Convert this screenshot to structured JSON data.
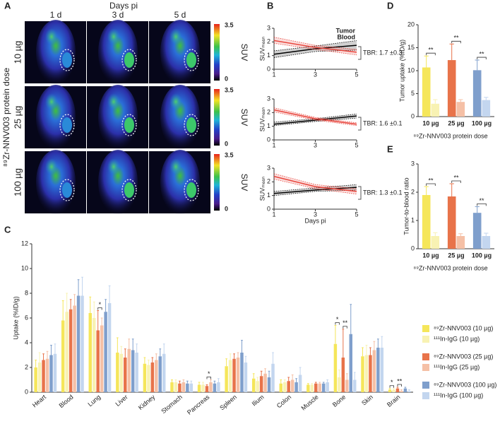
{
  "panel_a": {
    "label": "A",
    "header": "Days pi",
    "columns": [
      "1 d",
      "3 d",
      "5 d"
    ],
    "rows": [
      "10 µg",
      "25 µg",
      "100 µg"
    ],
    "dose_label": "⁸⁹Zr-NNV003 protein dose",
    "colorbar": {
      "max": 3.5,
      "min": 0,
      "label": "SUV"
    }
  },
  "chart_data": [
    {
      "type": "line",
      "panel": "B",
      "x": [
        1,
        3,
        5
      ],
      "xlim": [
        1,
        5
      ],
      "xticks": [
        1,
        3,
        5
      ],
      "ylim": [
        0,
        3
      ],
      "yticks": [
        0,
        1,
        2,
        3
      ],
      "ylabel": "SUVₘₑₐₙ",
      "annotation": "TBR: 1.7 ±0.3",
      "series": [
        {
          "name": "Tumor",
          "color": "#000000",
          "values": [
            1.1,
            1.5,
            1.75
          ],
          "lower": [
            0.85,
            1.3,
            1.4
          ],
          "upper": [
            1.35,
            1.7,
            2.1
          ]
        },
        {
          "name": "Blood",
          "color": "#e8453c",
          "values": [
            2.1,
            1.6,
            1.25
          ],
          "lower": [
            1.9,
            1.45,
            1.05
          ],
          "upper": [
            2.35,
            1.75,
            1.45
          ]
        }
      ]
    },
    {
      "type": "line",
      "x": [
        1,
        3,
        5
      ],
      "xlim": [
        1,
        5
      ],
      "xticks": [
        1,
        3,
        5
      ],
      "ylim": [
        0,
        3
      ],
      "yticks": [
        0,
        1,
        2,
        3
      ],
      "ylabel": "SUVₘₑₐₙ",
      "annotation": "TBR: 1.6 ±0.1",
      "series": [
        {
          "color": "#000000",
          "values": [
            1.15,
            1.45,
            1.75
          ],
          "lower": [
            1.05,
            1.35,
            1.6
          ],
          "upper": [
            1.3,
            1.55,
            1.9
          ]
        },
        {
          "color": "#e8453c",
          "values": [
            2.2,
            1.55,
            1.15
          ],
          "lower": [
            2.05,
            1.45,
            1.05
          ],
          "upper": [
            2.35,
            1.65,
            1.25
          ]
        }
      ]
    },
    {
      "type": "line",
      "x": [
        1,
        3,
        5
      ],
      "xlim": [
        1,
        5
      ],
      "xticks": [
        1,
        3,
        5
      ],
      "ylim": [
        0,
        3
      ],
      "yticks": [
        0,
        1,
        2,
        3
      ],
      "ylabel": "SUVₘₑₐₙ",
      "xlabel": "Days pi",
      "annotation": "TBR: 1.3 ±0.1",
      "series": [
        {
          "color": "#000000",
          "values": [
            1.15,
            1.4,
            1.6
          ],
          "lower": [
            1.0,
            1.3,
            1.4
          ],
          "upper": [
            1.3,
            1.55,
            1.8
          ]
        },
        {
          "color": "#e8453c",
          "values": [
            2.4,
            1.65,
            1.3
          ],
          "lower": [
            2.2,
            1.5,
            1.1
          ],
          "upper": [
            2.6,
            1.8,
            1.5
          ]
        }
      ]
    },
    {
      "type": "bar",
      "panel": "D",
      "categories": [
        "10 µg",
        "25 µg",
        "100 µg"
      ],
      "ylim": [
        0,
        20
      ],
      "yticks": [
        0,
        5,
        10,
        15,
        20
      ],
      "ylabel": "Tumor uptake (%ID/g)",
      "xlabel": "⁸⁹Zr-NNV003 protein dose",
      "annotations": [
        "**",
        "**",
        "**"
      ],
      "series": [
        {
          "colors": [
            "#f5e65a",
            "#e8734a",
            "#7f9fcc"
          ],
          "values": [
            10.7,
            12.3,
            10.1
          ],
          "errors": [
            2.5,
            3.5,
            2.2
          ]
        },
        {
          "colors": [
            "#f8f2b3",
            "#f5c0a6",
            "#c3d6ef"
          ],
          "values": [
            2.8,
            3.2,
            3.6
          ],
          "errors": [
            0.9,
            0.5,
            0.6
          ]
        }
      ]
    },
    {
      "type": "bar",
      "panel": "E",
      "categories": [
        "10 µg",
        "25 µg",
        "100 µg"
      ],
      "ylim": [
        0,
        3
      ],
      "yticks": [
        0,
        1,
        2,
        3
      ],
      "ylabel": "Tumor-to-blood ratio",
      "xlabel": "⁸⁹Zr-NNV003 protein dose",
      "annotations": [
        "**",
        "**",
        "**"
      ],
      "series": [
        {
          "colors": [
            "#f5e65a",
            "#e8734a",
            "#7f9fcc"
          ],
          "values": [
            1.9,
            1.85,
            1.27
          ],
          "errors": [
            0.3,
            0.45,
            0.22
          ]
        },
        {
          "colors": [
            "#f8f2b3",
            "#f5c0a6",
            "#c3d6ef"
          ],
          "values": [
            0.45,
            0.45,
            0.45
          ],
          "errors": [
            0.12,
            0.08,
            0.1
          ]
        }
      ]
    },
    {
      "type": "bar",
      "panel": "C",
      "categories": [
        "Heart",
        "Blood",
        "Lung",
        "Liver",
        "Kidney",
        "Stomach",
        "Pancreas",
        "Spleen",
        "Ilium",
        "Colon",
        "Muscle",
        "Bone",
        "Skin",
        "Brain"
      ],
      "ylim": [
        0,
        12
      ],
      "yticks": [
        0,
        2,
        4,
        6,
        8,
        10,
        12
      ],
      "ylabel": "Uptake (%ID/g)",
      "annotations": [
        "*",
        "*",
        "*",
        "**",
        "*",
        "**"
      ],
      "series": [
        {
          "name": "⁸⁹Zr-NNV003 (10 µg)",
          "color": "#f5e65a",
          "values": [
            2.0,
            5.8,
            6.4,
            3.2,
            2.3,
            0.8,
            0.6,
            2.1,
            1.1,
            0.7,
            0.6,
            3.9,
            2.9,
            0.2
          ],
          "errors": [
            0.6,
            1.6,
            1.3,
            1.2,
            0.5,
            0.2,
            0.2,
            0.6,
            0.4,
            0.3,
            0.1,
            1.5,
            0.7,
            0.1
          ]
        },
        {
          "name": "¹¹¹In-IgG (10 µg)",
          "color": "#f8f2b3",
          "values": [
            2.4,
            6.5,
            6.0,
            3.1,
            2.2,
            0.8,
            0.6,
            2.6,
            0.9,
            0.8,
            0.6,
            1.2,
            3.0,
            0.2
          ],
          "errors": [
            0.8,
            1.5,
            1.3,
            0.6,
            0.4,
            0.2,
            0.2,
            0.5,
            0.3,
            0.2,
            0.1,
            0.6,
            0.8,
            0.1
          ]
        },
        {
          "name": "⁸⁹Zr-NNV003 (25 µg)",
          "color": "#e8734a",
          "values": [
            2.6,
            6.7,
            5.0,
            2.8,
            2.4,
            0.7,
            0.5,
            2.7,
            1.3,
            0.9,
            0.7,
            2.8,
            3.0,
            0.3
          ],
          "errors": [
            0.5,
            0.8,
            1.6,
            0.7,
            0.4,
            0.2,
            0.1,
            0.4,
            0.4,
            0.3,
            0.1,
            2.3,
            0.6,
            0.1
          ]
        },
        {
          "name": "¹¹¹In-IgG (25 µg)",
          "color": "#f5c0a6",
          "values": [
            2.7,
            7.0,
            5.4,
            3.5,
            2.6,
            0.8,
            0.8,
            2.8,
            1.5,
            1.0,
            0.7,
            1.0,
            3.4,
            0.1
          ],
          "errors": [
            0.6,
            0.9,
            0.6,
            0.8,
            0.5,
            0.2,
            0.2,
            0.4,
            0.4,
            0.4,
            0.1,
            0.5,
            0.7,
            0.1
          ]
        },
        {
          "name": "⁸⁹Zr-NNV003 (100 µg)",
          "color": "#7f9fcc",
          "values": [
            3.0,
            7.8,
            6.5,
            3.4,
            2.9,
            0.7,
            0.7,
            3.2,
            1.2,
            0.8,
            0.7,
            4.7,
            3.6,
            0.3
          ],
          "errors": [
            0.8,
            1.3,
            1.0,
            0.9,
            0.6,
            0.2,
            0.2,
            1.0,
            0.5,
            0.3,
            0.1,
            2.4,
            0.7,
            0.1
          ]
        },
        {
          "name": "¹¹¹In-IgG (100 µg)",
          "color": "#c3d6ef",
          "values": [
            3.1,
            7.8,
            7.2,
            3.2,
            3.1,
            0.7,
            0.8,
            2.4,
            2.3,
            1.4,
            0.8,
            1.0,
            3.6,
            0.1
          ],
          "errors": [
            0.8,
            1.5,
            1.4,
            0.7,
            0.8,
            0.2,
            0.3,
            0.5,
            0.9,
            0.6,
            0.2,
            0.6,
            0.9,
            0.1
          ]
        }
      ]
    }
  ]
}
